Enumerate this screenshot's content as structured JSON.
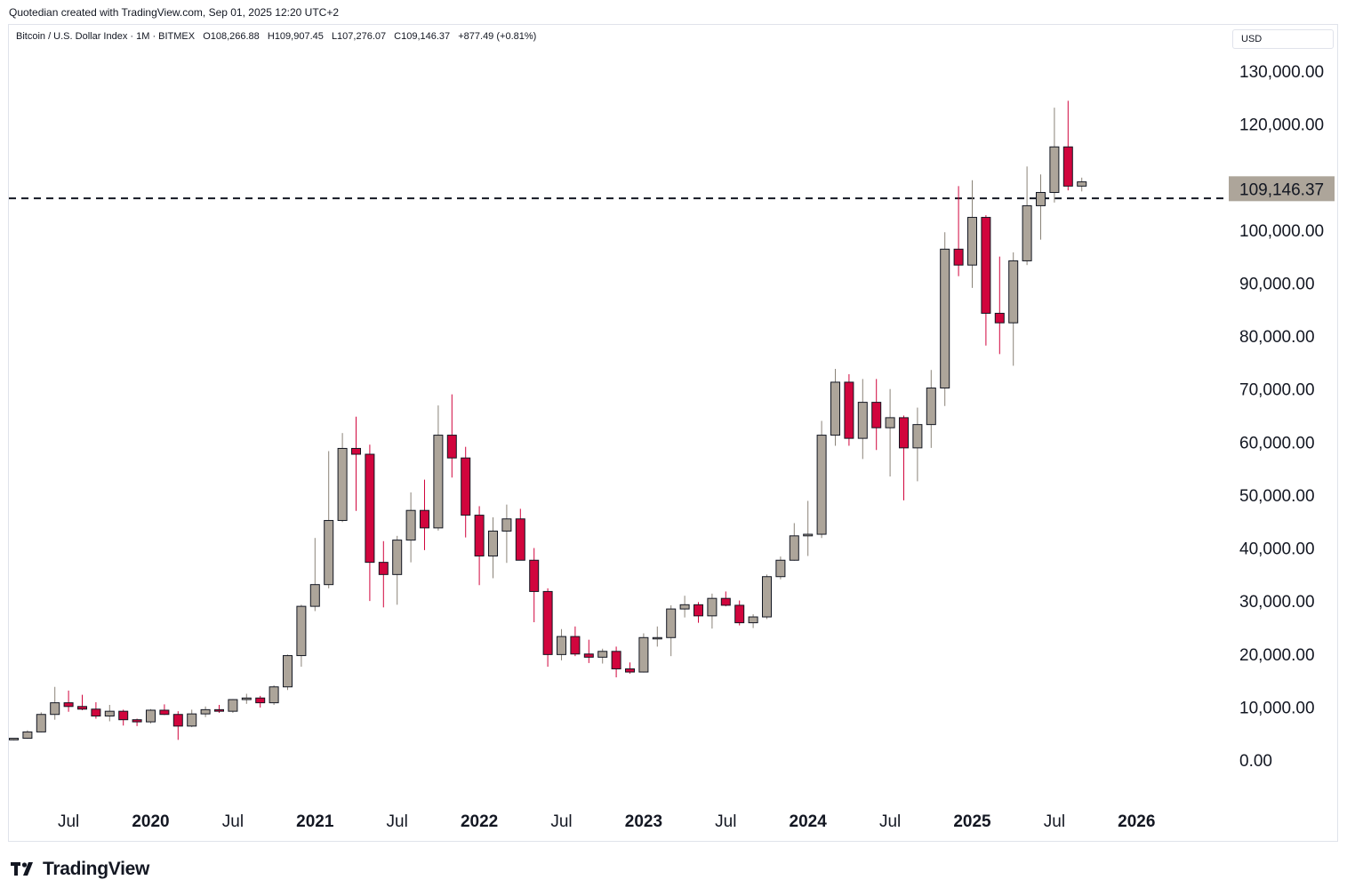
{
  "header": {
    "text": "Quotedian created with TradingView.com, Sep 01, 2025 12:20 UTC+2"
  },
  "legend": {
    "symbol": "Bitcoin / U.S. Dollar Index · 1M · BITMEX",
    "open": "O108,266.88",
    "high": "H109,907.45",
    "low": "L107,276.07",
    "close": "C109,146.37",
    "change": "+877.49 (+0.81%)"
  },
  "currency": "USD",
  "footer": {
    "brand": "TradingView",
    "logo_icon": "tradingview-logo-icon"
  },
  "colors": {
    "up": "#ada59a",
    "down": "#d1053d",
    "outline": "#131722",
    "price_label_bg": "#ada59a",
    "axis_border": "#e0e3eb"
  },
  "chart_data": {
    "type": "candlestick",
    "interval": "1M",
    "y_unit": "USD",
    "ylim": [
      0,
      130000
    ],
    "y_ticks": [
      "130,000.00",
      "120,000.00",
      "100,000.00",
      "90,000.00",
      "80,000.00",
      "70,000.00",
      "60,000.00",
      "50,000.00",
      "40,000.00",
      "30,000.00",
      "20,000.00",
      "10,000.00",
      "0.00"
    ],
    "y_tick_values": [
      130000,
      120000,
      100000,
      90000,
      80000,
      70000,
      60000,
      50000,
      40000,
      30000,
      20000,
      10000,
      0
    ],
    "x_ticks": [
      {
        "label": "Jul",
        "month": "2019-07"
      },
      {
        "label": "2020",
        "month": "2020-01"
      },
      {
        "label": "Jul",
        "month": "2020-07"
      },
      {
        "label": "2021",
        "month": "2021-01"
      },
      {
        "label": "Jul",
        "month": "2021-07"
      },
      {
        "label": "2022",
        "month": "2022-01"
      },
      {
        "label": "Jul",
        "month": "2022-07"
      },
      {
        "label": "2023",
        "month": "2023-01"
      },
      {
        "label": "Jul",
        "month": "2023-07"
      },
      {
        "label": "2024",
        "month": "2024-01"
      },
      {
        "label": "Jul",
        "month": "2024-07"
      },
      {
        "label": "2025",
        "month": "2025-01"
      },
      {
        "label": "Jul",
        "month": "2025-07"
      },
      {
        "label": "2026",
        "month": "2026-01"
      }
    ],
    "x_range": [
      "2019-03",
      "2026-05"
    ],
    "last_price": "109,146.37",
    "last_price_value": 109146.37,
    "horizontal_line": {
      "value": 106000,
      "style": "dashed"
    },
    "grid": false,
    "candles": [
      {
        "t": "2019-03",
        "o": 3800,
        "h": 4100,
        "l": 3700,
        "c": 4100
      },
      {
        "t": "2019-04",
        "o": 4100,
        "h": 5600,
        "l": 4000,
        "c": 5300
      },
      {
        "t": "2019-05",
        "o": 5300,
        "h": 9000,
        "l": 5200,
        "c": 8600
      },
      {
        "t": "2019-06",
        "o": 8600,
        "h": 13800,
        "l": 7600,
        "c": 10800
      },
      {
        "t": "2019-07",
        "o": 10800,
        "h": 13100,
        "l": 9100,
        "c": 10100
      },
      {
        "t": "2019-08",
        "o": 10100,
        "h": 12300,
        "l": 9400,
        "c": 9600
      },
      {
        "t": "2019-09",
        "o": 9600,
        "h": 10900,
        "l": 7800,
        "c": 8300
      },
      {
        "t": "2019-10",
        "o": 8300,
        "h": 10400,
        "l": 7300,
        "c": 9200
      },
      {
        "t": "2019-11",
        "o": 9200,
        "h": 9500,
        "l": 6500,
        "c": 7600
      },
      {
        "t": "2019-12",
        "o": 7600,
        "h": 7800,
        "l": 6400,
        "c": 7200
      },
      {
        "t": "2020-01",
        "o": 7200,
        "h": 9600,
        "l": 6900,
        "c": 9400
      },
      {
        "t": "2020-02",
        "o": 9400,
        "h": 10500,
        "l": 8500,
        "c": 8600
      },
      {
        "t": "2020-03",
        "o": 8600,
        "h": 9200,
        "l": 3800,
        "c": 6400
      },
      {
        "t": "2020-04",
        "o": 6400,
        "h": 9500,
        "l": 6200,
        "c": 8700
      },
      {
        "t": "2020-05",
        "o": 8700,
        "h": 10100,
        "l": 8100,
        "c": 9500
      },
      {
        "t": "2020-06",
        "o": 9500,
        "h": 10400,
        "l": 8900,
        "c": 9200
      },
      {
        "t": "2020-07",
        "o": 9200,
        "h": 11500,
        "l": 8900,
        "c": 11400
      },
      {
        "t": "2020-08",
        "o": 11400,
        "h": 12500,
        "l": 10600,
        "c": 11700
      },
      {
        "t": "2020-09",
        "o": 11700,
        "h": 12100,
        "l": 9900,
        "c": 10800
      },
      {
        "t": "2020-10",
        "o": 10800,
        "h": 14100,
        "l": 10400,
        "c": 13800
      },
      {
        "t": "2020-11",
        "o": 13800,
        "h": 19900,
        "l": 13200,
        "c": 19700
      },
      {
        "t": "2020-12",
        "o": 19700,
        "h": 29300,
        "l": 17600,
        "c": 29000
      },
      {
        "t": "2021-01",
        "o": 29000,
        "h": 41900,
        "l": 28100,
        "c": 33100
      },
      {
        "t": "2021-02",
        "o": 33100,
        "h": 58300,
        "l": 32400,
        "c": 45200
      },
      {
        "t": "2021-03",
        "o": 45200,
        "h": 61700,
        "l": 44900,
        "c": 58800
      },
      {
        "t": "2021-04",
        "o": 58800,
        "h": 64800,
        "l": 47000,
        "c": 57700
      },
      {
        "t": "2021-05",
        "o": 57700,
        "h": 59500,
        "l": 30000,
        "c": 37300
      },
      {
        "t": "2021-06",
        "o": 37300,
        "h": 41300,
        "l": 28800,
        "c": 35000
      },
      {
        "t": "2021-07",
        "o": 35000,
        "h": 42300,
        "l": 29300,
        "c": 41500
      },
      {
        "t": "2021-08",
        "o": 41500,
        "h": 50500,
        "l": 37300,
        "c": 47100
      },
      {
        "t": "2021-09",
        "o": 47100,
        "h": 52900,
        "l": 39600,
        "c": 43800
      },
      {
        "t": "2021-10",
        "o": 43800,
        "h": 66900,
        "l": 43300,
        "c": 61300
      },
      {
        "t": "2021-11",
        "o": 61300,
        "h": 69000,
        "l": 53300,
        "c": 57000
      },
      {
        "t": "2021-12",
        "o": 57000,
        "h": 59100,
        "l": 42000,
        "c": 46200
      },
      {
        "t": "2022-01",
        "o": 46200,
        "h": 47900,
        "l": 33000,
        "c": 38500
      },
      {
        "t": "2022-02",
        "o": 38500,
        "h": 45800,
        "l": 34300,
        "c": 43200
      },
      {
        "t": "2022-03",
        "o": 43200,
        "h": 48200,
        "l": 37200,
        "c": 45500
      },
      {
        "t": "2022-04",
        "o": 45500,
        "h": 47400,
        "l": 37700,
        "c": 37700
      },
      {
        "t": "2022-05",
        "o": 37700,
        "h": 40000,
        "l": 26000,
        "c": 31800
      },
      {
        "t": "2022-06",
        "o": 31800,
        "h": 32400,
        "l": 17600,
        "c": 19900
      },
      {
        "t": "2022-07",
        "o": 19900,
        "h": 24700,
        "l": 18800,
        "c": 23300
      },
      {
        "t": "2022-08",
        "o": 23300,
        "h": 25200,
        "l": 19600,
        "c": 20000
      },
      {
        "t": "2022-09",
        "o": 20000,
        "h": 22700,
        "l": 18300,
        "c": 19400
      },
      {
        "t": "2022-10",
        "o": 19400,
        "h": 21000,
        "l": 18200,
        "c": 20500
      },
      {
        "t": "2022-11",
        "o": 20500,
        "h": 21400,
        "l": 15600,
        "c": 17200
      },
      {
        "t": "2022-12",
        "o": 17200,
        "h": 18400,
        "l": 16300,
        "c": 16600
      },
      {
        "t": "2023-01",
        "o": 16600,
        "h": 23900,
        "l": 16500,
        "c": 23100
      },
      {
        "t": "2023-02",
        "o": 23100,
        "h": 25200,
        "l": 21400,
        "c": 23100
      },
      {
        "t": "2023-03",
        "o": 23100,
        "h": 29200,
        "l": 19600,
        "c": 28500
      },
      {
        "t": "2023-04",
        "o": 28500,
        "h": 31000,
        "l": 26900,
        "c": 29300
      },
      {
        "t": "2023-05",
        "o": 29300,
        "h": 29800,
        "l": 25900,
        "c": 27200
      },
      {
        "t": "2023-06",
        "o": 27200,
        "h": 31400,
        "l": 24800,
        "c": 30500
      },
      {
        "t": "2023-07",
        "o": 30500,
        "h": 31800,
        "l": 29000,
        "c": 29200
      },
      {
        "t": "2023-08",
        "o": 29200,
        "h": 30100,
        "l": 25400,
        "c": 25900
      },
      {
        "t": "2023-09",
        "o": 25900,
        "h": 27500,
        "l": 24900,
        "c": 27000
      },
      {
        "t": "2023-10",
        "o": 27000,
        "h": 35000,
        "l": 26600,
        "c": 34600
      },
      {
        "t": "2023-11",
        "o": 34600,
        "h": 38400,
        "l": 34100,
        "c": 37700
      },
      {
        "t": "2023-12",
        "o": 37700,
        "h": 44700,
        "l": 37600,
        "c": 42300
      },
      {
        "t": "2024-01",
        "o": 42300,
        "h": 48900,
        "l": 38500,
        "c": 42600
      },
      {
        "t": "2024-02",
        "o": 42600,
        "h": 64000,
        "l": 41900,
        "c": 61300
      },
      {
        "t": "2024-03",
        "o": 61300,
        "h": 73800,
        "l": 59300,
        "c": 71300
      },
      {
        "t": "2024-04",
        "o": 71300,
        "h": 72800,
        "l": 59300,
        "c": 60700
      },
      {
        "t": "2024-05",
        "o": 60700,
        "h": 71900,
        "l": 56800,
        "c": 67500
      },
      {
        "t": "2024-06",
        "o": 67500,
        "h": 71900,
        "l": 58500,
        "c": 62700
      },
      {
        "t": "2024-07",
        "o": 62700,
        "h": 70000,
        "l": 53500,
        "c": 64600
      },
      {
        "t": "2024-08",
        "o": 64600,
        "h": 65000,
        "l": 49000,
        "c": 58900
      },
      {
        "t": "2024-09",
        "o": 58900,
        "h": 66500,
        "l": 52600,
        "c": 63300
      },
      {
        "t": "2024-10",
        "o": 63300,
        "h": 73600,
        "l": 58900,
        "c": 70200
      },
      {
        "t": "2024-11",
        "o": 70200,
        "h": 99600,
        "l": 66800,
        "c": 96400
      },
      {
        "t": "2024-12",
        "o": 96400,
        "h": 108300,
        "l": 91300,
        "c": 93400
      },
      {
        "t": "2025-01",
        "o": 93400,
        "h": 109400,
        "l": 89100,
        "c": 102400
      },
      {
        "t": "2025-02",
        "o": 102400,
        "h": 102800,
        "l": 78200,
        "c": 84300
      },
      {
        "t": "2025-03",
        "o": 84300,
        "h": 95000,
        "l": 76600,
        "c": 82500
      },
      {
        "t": "2025-04",
        "o": 82500,
        "h": 95800,
        "l": 74400,
        "c": 94200
      },
      {
        "t": "2025-05",
        "o": 94200,
        "h": 112000,
        "l": 93400,
        "c": 104600
      },
      {
        "t": "2025-06",
        "o": 104600,
        "h": 110500,
        "l": 98200,
        "c": 107100
      },
      {
        "t": "2025-07",
        "o": 107100,
        "h": 123100,
        "l": 105200,
        "c": 115700
      },
      {
        "t": "2025-08",
        "o": 115700,
        "h": 124400,
        "l": 107500,
        "c": 108300
      },
      {
        "t": "2025-09",
        "o": 108300,
        "h": 109900,
        "l": 107300,
        "c": 109100
      }
    ]
  }
}
